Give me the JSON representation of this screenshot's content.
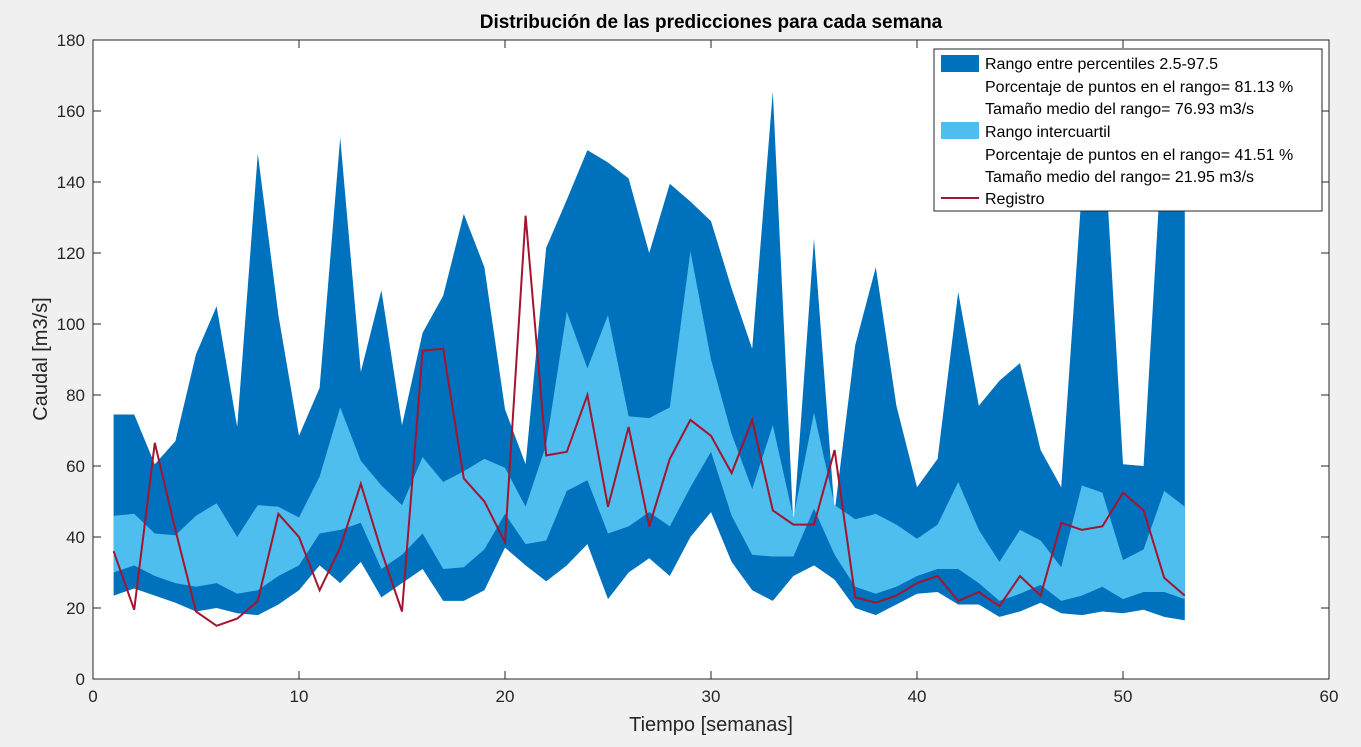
{
  "chart_data": {
    "type": "area",
    "title": "Distribución de las predicciones para cada semana",
    "xlabel": "Tiempo [semanas]",
    "ylabel": "Caudal [m3/s]",
    "xlim": [
      0,
      60
    ],
    "ylim": [
      0,
      180
    ],
    "xticks": [
      0,
      10,
      20,
      30,
      40,
      50,
      60
    ],
    "yticks": [
      0,
      20,
      40,
      60,
      80,
      100,
      120,
      140,
      160,
      180
    ],
    "grid": false,
    "legend_position": "top-right",
    "x": [
      1,
      2,
      3,
      4,
      5,
      6,
      7,
      8,
      9,
      10,
      11,
      12,
      13,
      14,
      15,
      16,
      17,
      18,
      19,
      20,
      21,
      22,
      23,
      24,
      25,
      26,
      27,
      28,
      29,
      30,
      31,
      32,
      33,
      34,
      35,
      36,
      37,
      38,
      39,
      40,
      41,
      42,
      43,
      44,
      45,
      46,
      47,
      48,
      49,
      50,
      51,
      52,
      53
    ],
    "series": [
      {
        "name": "Rango entre percentiles 2.5-97.5",
        "kind": "band",
        "color": "#0072BD",
        "lower": [
          23.5,
          25.5,
          23.5,
          21.5,
          19,
          20,
          18.5,
          18,
          21,
          25,
          32,
          27,
          33,
          23,
          27,
          31,
          22,
          22,
          25,
          37,
          32,
          27.5,
          32,
          38,
          22.5,
          30,
          34,
          29,
          40,
          47,
          33,
          25,
          22,
          29,
          32,
          28,
          20,
          18,
          21,
          24,
          24.5,
          21,
          21,
          17.5,
          19,
          21.5,
          18.5,
          18,
          19,
          18.5,
          19.5,
          17.5,
          16.5
        ],
        "upper": [
          74.5,
          74.5,
          60.5,
          67,
          91.5,
          105,
          71,
          148,
          102.5,
          68.5,
          82,
          152.5,
          86.5,
          109.5,
          71.5,
          97.5,
          108,
          131,
          116,
          76,
          60.5,
          121.5,
          135,
          149,
          145.5,
          141,
          120,
          139.5,
          134.5,
          129,
          110,
          93,
          165.5,
          43,
          124,
          47,
          94,
          116,
          77,
          54,
          62,
          109,
          77,
          84,
          89,
          64.5,
          54,
          137.5,
          160,
          60.5,
          60,
          160,
          142
        ]
      },
      {
        "name": "Rango intercuartil",
        "kind": "band",
        "color": "#4DBEEE",
        "lower": [
          30,
          32,
          29,
          27,
          26,
          27,
          24,
          25,
          29,
          32,
          41,
          42,
          44,
          31,
          35,
          41,
          31,
          31.5,
          36.5,
          46.5,
          38,
          39,
          53,
          56,
          41,
          43,
          47,
          43,
          54,
          64,
          46,
          35,
          34.5,
          34.5,
          48,
          35,
          26,
          24,
          26,
          29,
          31,
          31,
          27,
          22,
          24,
          26.5,
          22,
          23.5,
          26,
          22.5,
          24.5,
          24.5,
          22.5
        ],
        "upper": [
          46,
          46.5,
          41,
          40.5,
          46,
          49.5,
          40,
          49,
          48.5,
          45.5,
          57,
          76.5,
          61.5,
          54.5,
          49,
          62.5,
          55.5,
          58.5,
          62,
          59.5,
          48.5,
          66,
          103.5,
          87.5,
          102.5,
          74,
          73.5,
          76.5,
          120.5,
          90,
          69,
          53.5,
          71.5,
          45.5,
          75,
          49,
          45,
          46.5,
          43.5,
          39.5,
          43.5,
          55.5,
          42,
          33,
          42,
          39,
          31.5,
          54.5,
          52.5,
          33.5,
          36.5,
          53,
          48.5
        ]
      },
      {
        "name": "Registro",
        "kind": "line",
        "color": "#A2142F",
        "values": [
          36,
          19.5,
          66.5,
          42,
          19,
          15,
          17,
          22,
          46.5,
          40,
          25,
          37,
          55,
          36,
          19,
          92.5,
          93,
          56.5,
          50,
          38.5,
          130.5,
          63,
          64,
          80,
          48.5,
          71,
          43,
          62,
          73,
          68.5,
          58,
          73,
          47.5,
          43.5,
          43.5,
          64.5,
          23,
          21.5,
          23.5,
          27,
          29,
          22,
          24.5,
          20.5,
          29,
          23.5,
          44,
          42,
          43,
          52.5,
          47.5,
          28.5,
          23.5
        ]
      }
    ],
    "legend": {
      "band1_label": "Rango entre percentiles 2.5-97.5",
      "band1_pct": "Porcentaje de puntos en el rango= 81.13 %",
      "band1_size": "Tamaño medio del rango= 76.93 m3/s",
      "band2_label": "Rango intercuartil",
      "band2_pct": "Porcentaje de puntos en el rango= 41.51 %",
      "band2_size": "Tamaño medio del rango= 21.95 m3/s",
      "line_label": "Registro"
    },
    "colors": {
      "outer_band": "#0072BD",
      "inner_band": "#4DBEEE",
      "line": "#A2142F",
      "axes_bg": "#FFFFFF",
      "figure_bg": "#F0F0F0"
    }
  }
}
